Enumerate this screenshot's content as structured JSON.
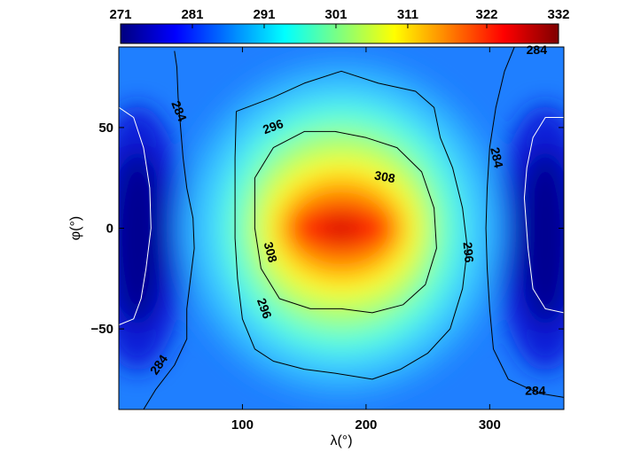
{
  "chart_data": {
    "type": "heatmap",
    "title": "",
    "xlabel": "λ(°)",
    "ylabel": "φ(°)",
    "xlim": [
      0,
      360
    ],
    "ylim": [
      -90,
      90
    ],
    "x_ticks": [
      100,
      200,
      300
    ],
    "y_ticks": [
      50,
      0,
      -50
    ],
    "y_tick_labels": [
      "50",
      "0",
      "−50"
    ],
    "colorbar": {
      "placement": "top",
      "range": [
        271,
        332
      ],
      "tick_values": [
        271,
        281,
        291,
        301,
        311,
        322,
        332
      ],
      "tick_labels": [
        "271",
        "281",
        "291",
        "301",
        "311",
        "322",
        "332"
      ],
      "colormap": [
        "#00007f",
        "#0000ff",
        "#007fff",
        "#00ffff",
        "#7fff7f",
        "#ffff00",
        "#ff7f00",
        "#ff0000",
        "#7f0000"
      ]
    },
    "field": {
      "description_of_structure": "hot spot centered near lambda 180, phi 0; cold regions near lambda 0/360",
      "hotspot_center": [
        180,
        0
      ],
      "hotspot_peak": 332,
      "coldspot_centers": [
        [
          15,
          -5
        ],
        [
          345,
          -5
        ]
      ],
      "coldspot_min": 271
    },
    "contours": [
      {
        "level": 284,
        "color": "#000000",
        "lines": [
          [
            [
              45,
              88
            ],
            [
              47,
              80
            ],
            [
              48,
              65
            ],
            [
              50,
              50
            ],
            [
              52,
              35
            ],
            [
              55,
              20
            ],
            [
              60,
              5
            ],
            [
              61,
              -10
            ],
            [
              58,
              -25
            ],
            [
              55,
              -40
            ],
            [
              55,
              -55
            ],
            [
              45,
              -68
            ],
            [
              30,
              -80
            ],
            [
              20,
              -90
            ]
          ],
          [
            [
              320,
              90
            ],
            [
              312,
              78
            ],
            [
              305,
              60
            ],
            [
              300,
              40
            ],
            [
              298,
              20
            ],
            [
              297,
              0
            ],
            [
              298,
              -20
            ],
            [
              300,
              -40
            ],
            [
              303,
              -60
            ],
            [
              315,
              -75
            ],
            [
              340,
              -82
            ],
            [
              360,
              -84
            ]
          ]
        ],
        "labels": [
          {
            "x": 48,
            "y": 58,
            "text": "284",
            "rotate": 68
          },
          {
            "x": 33,
            "y": -68,
            "text": "284",
            "rotate": -55
          },
          {
            "x": 338,
            "y": 88,
            "text": "284",
            "rotate": 0
          },
          {
            "x": 305,
            "y": 35,
            "text": "284",
            "rotate": 78
          },
          {
            "x": 337,
            "y": -81,
            "text": "284",
            "rotate": 0
          }
        ]
      },
      {
        "level": 296,
        "color": "#000000",
        "lines": [
          [
            [
              95,
              58
            ],
            [
              125,
              65
            ],
            [
              150,
              72
            ],
            [
              180,
              78
            ],
            [
              210,
              72
            ],
            [
              240,
              68
            ],
            [
              255,
              60
            ],
            [
              260,
              45
            ],
            [
              270,
              30
            ],
            [
              278,
              10
            ],
            [
              282,
              -10
            ],
            [
              278,
              -30
            ],
            [
              268,
              -50
            ],
            [
              250,
              -62
            ],
            [
              228,
              -70
            ],
            [
              205,
              -75
            ],
            [
              175,
              -72
            ],
            [
              150,
              -70
            ],
            [
              125,
              -66
            ],
            [
              110,
              -60
            ],
            [
              100,
              -45
            ],
            [
              96,
              -25
            ],
            [
              94,
              -5
            ],
            [
              94,
              15
            ],
            [
              94,
              35
            ],
            [
              95,
              58
            ]
          ]
        ],
        "labels": [
          {
            "x": 125,
            "y": 50,
            "text": "296",
            "rotate": -20
          },
          {
            "x": 282,
            "y": -12,
            "text": "296",
            "rotate": 85
          },
          {
            "x": 117,
            "y": -40,
            "text": "296",
            "rotate": 70
          }
        ]
      },
      {
        "level": 308,
        "color": "#000000",
        "lines": [
          [
            [
              110,
              25
            ],
            [
              125,
              40
            ],
            [
              150,
              48
            ],
            [
              175,
              48
            ],
            [
              200,
              45
            ],
            [
              225,
              40
            ],
            [
              245,
              28
            ],
            [
              255,
              10
            ],
            [
              257,
              -10
            ],
            [
              248,
              -28
            ],
            [
              230,
              -38
            ],
            [
              205,
              -42
            ],
            [
              180,
              -40
            ],
            [
              155,
              -40
            ],
            [
              130,
              -35
            ],
            [
              115,
              -20
            ],
            [
              110,
              0
            ],
            [
              110,
              25
            ]
          ]
        ],
        "labels": [
          {
            "x": 215,
            "y": 25,
            "text": "308",
            "rotate": 10
          },
          {
            "x": 122,
            "y": -12,
            "text": "308",
            "rotate": 75
          }
        ]
      },
      {
        "level": 276,
        "color": "#ffffff",
        "lines": [
          [
            [
              0,
              60
            ],
            [
              12,
              55
            ],
            [
              20,
              40
            ],
            [
              25,
              20
            ],
            [
              26,
              0
            ],
            [
              22,
              -20
            ],
            [
              18,
              -35
            ],
            [
              12,
              -45
            ],
            [
              0,
              -48
            ]
          ],
          [
            [
              360,
              55
            ],
            [
              345,
              55
            ],
            [
              335,
              45
            ],
            [
              330,
              30
            ],
            [
              328,
              15
            ],
            [
              331,
              -10
            ],
            [
              335,
              -30
            ],
            [
              345,
              -40
            ],
            [
              360,
              -42
            ]
          ]
        ],
        "labels": []
      }
    ]
  }
}
